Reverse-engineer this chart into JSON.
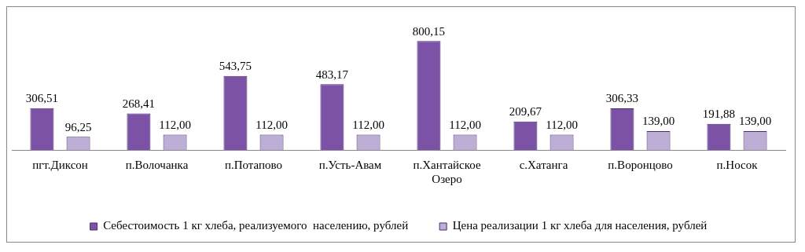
{
  "chart_data": {
    "type": "bar",
    "categories": [
      "пгт.Диксон",
      "п.Волочанка",
      "п.Потапово",
      "п.Усть-Авам",
      "п.Хантайское Озеро",
      "с.Хатанга",
      "п.Воронцово",
      "п.Носок"
    ],
    "series": [
      {
        "name": "Себестоимость 1 кг хлеба, реализуемого  населению, рублей",
        "color": "#7b52a6",
        "values": [
          306.51,
          268.41,
          543.75,
          483.17,
          800.15,
          209.67,
          306.33,
          191.88
        ],
        "value_labels": [
          "306,51",
          "268,41",
          "543,75",
          "483,17",
          "800,15",
          "209,67",
          "306,33",
          "191,88"
        ]
      },
      {
        "name": "Цена реализации 1 кг хлеба для населения, рублей",
        "color": "#bcaed4",
        "values": [
          96.25,
          112,
          112,
          112,
          112,
          112,
          139,
          139
        ],
        "value_labels": [
          "96,25",
          "112,00",
          "112,00",
          "112,00",
          "112,00",
          "112,00",
          "139,00",
          "139,00"
        ]
      }
    ],
    "legend": "bottom",
    "grid": false
  }
}
